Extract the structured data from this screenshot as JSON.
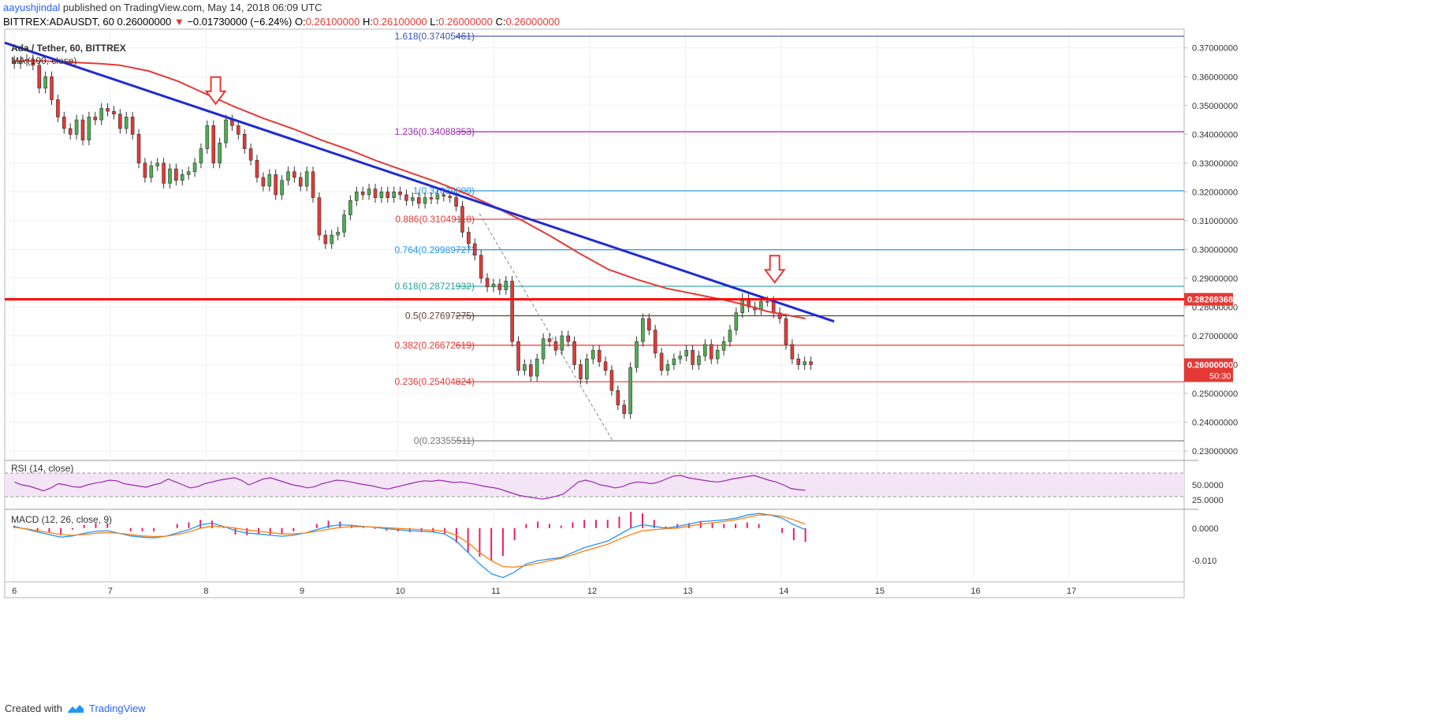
{
  "header": {
    "author": "aayushjindal",
    "published_text": " published on TradingView.com, May 14, 2018 06:09 UTC"
  },
  "ohlc": {
    "symbol": "BITTREX:ADAUSDT, 60",
    "last": "0.26000000",
    "arrow": "▼",
    "change": "−0.01730000 (−6.24%)",
    "o_label": "O:",
    "o": "0.26100000",
    "h_label": "H:",
    "h": "0.26100000",
    "l_label": "L:",
    "l": "0.26000000",
    "c_label": "C:",
    "c": "0.26000000"
  },
  "footer": {
    "created_with": "Created with",
    "brand": "TradingView"
  },
  "colors": {
    "up": "#4caf50",
    "down": "#e53935",
    "ma": "#e53935",
    "trend": "#1f2bd1",
    "resistance": "#ff0000",
    "rsi": "#9c27b0",
    "rsi_band": "#f3e5f5",
    "macd": "#2196f3",
    "signal": "#ff7f0e",
    "hist": "#e91e63",
    "price_badge": "#e53935",
    "grid": "#eef0f3"
  },
  "chart_data": {
    "type": "candlestick",
    "title": "Ada / Tether, 60, BITTREX",
    "ma_label": "MA (100, close)",
    "x_ticks": [
      "6",
      "7",
      "8",
      "9",
      "10",
      "11",
      "12",
      "13",
      "14",
      "15",
      "16",
      "17"
    ],
    "y_ticks": [
      "0.37000000",
      "0.36000000",
      "0.35000000",
      "0.34000000",
      "0.33000000",
      "0.32000000",
      "0.31000000",
      "0.30000000",
      "0.29000000",
      "0.28000000",
      "0.27000000",
      "0.26000000",
      "0.25000000",
      "0.24000000",
      "0.23000000"
    ],
    "ylim": [
      0.227,
      0.3765
    ],
    "xlim": [
      5.9,
      18.2
    ],
    "price_close": [
      0.3645,
      0.3655,
      0.366,
      0.364,
      0.356,
      0.36,
      0.352,
      0.346,
      0.342,
      0.34,
      0.345,
      0.338,
      0.346,
      0.345,
      0.349,
      0.348,
      0.347,
      0.342,
      0.346,
      0.34,
      0.33,
      0.325,
      0.329,
      0.33,
      0.323,
      0.328,
      0.324,
      0.326,
      0.327,
      0.33,
      0.335,
      0.343,
      0.33,
      0.337,
      0.345,
      0.343,
      0.34,
      0.335,
      0.331,
      0.325,
      0.322,
      0.326,
      0.319,
      0.324,
      0.327,
      0.325,
      0.322,
      0.327,
      0.318,
      0.305,
      0.302,
      0.305,
      0.306,
      0.312,
      0.317,
      0.32,
      0.319,
      0.321,
      0.318,
      0.32,
      0.318,
      0.32,
      0.319,
      0.317,
      0.318,
      0.316,
      0.318,
      0.3175,
      0.319,
      0.3185,
      0.318,
      0.315,
      0.306,
      0.302,
      0.298,
      0.29,
      0.287,
      0.288,
      0.286,
      0.289,
      0.268,
      0.258,
      0.26,
      0.256,
      0.262,
      0.269,
      0.268,
      0.265,
      0.27,
      0.268,
      0.26,
      0.255,
      0.262,
      0.265,
      0.261,
      0.258,
      0.251,
      0.246,
      0.243,
      0.259,
      0.268,
      0.276,
      0.272,
      0.264,
      0.258,
      0.26,
      0.262,
      0.263,
      0.265,
      0.26,
      0.263,
      0.267,
      0.262,
      0.265,
      0.268,
      0.272,
      0.278,
      0.283,
      0.28,
      0.279,
      0.282,
      0.282,
      0.278,
      0.276,
      0.267,
      0.262,
      0.26,
      0.261,
      0.26
    ],
    "price_start_day": 6.0,
    "price_step_day": 0.0649,
    "ma_values": [
      0.3655,
      0.3655,
      0.365,
      0.3645,
      0.364,
      0.362,
      0.3585,
      0.354,
      0.3495,
      0.3455,
      0.342,
      0.338,
      0.3345,
      0.3305,
      0.327,
      0.3235,
      0.3195,
      0.315,
      0.31,
      0.3045,
      0.2985,
      0.293,
      0.2895,
      0.2865,
      0.2845,
      0.2825,
      0.2805,
      0.2785,
      0.276
    ],
    "ma_days": [
      6.0,
      6.3,
      6.6,
      6.9,
      7.1,
      7.4,
      7.7,
      8.0,
      8.3,
      8.6,
      8.9,
      9.2,
      9.5,
      9.8,
      10.1,
      10.4,
      10.7,
      11.0,
      11.3,
      11.6,
      11.9,
      12.2,
      12.5,
      12.8,
      13.1,
      13.4,
      13.65,
      13.85,
      14.25
    ],
    "trendline": {
      "x": [
        5.9,
        14.55
      ],
      "y": [
        0.3718,
        0.275
      ]
    },
    "fib_line": {
      "x": [
        10.85,
        12.24
      ],
      "y": [
        0.3125,
        0.23356
      ]
    },
    "resistance": {
      "value": "0.28269368",
      "y": 0.28269
    },
    "current_price": {
      "value": "0.26000000",
      "countdown": "50:30",
      "y": 0.26
    },
    "fib_levels": [
      {
        "label": "1.618(0.37405461)",
        "y": 0.37405,
        "color": "#3f51b5"
      },
      {
        "label": "1.236(0.34088353)",
        "y": 0.34088,
        "color": "#9c27b0"
      },
      {
        "label": "1(0.32039000)",
        "y": 0.32039,
        "color": "#2196f3"
      },
      {
        "label": "0.886(0.31049118)",
        "y": 0.31049,
        "color": "#e53935"
      },
      {
        "label": "0.764(0.29989727)",
        "y": 0.2999,
        "color": "#2196f3"
      },
      {
        "label": "0.618(0.28721932)",
        "y": 0.28722,
        "color": "#26a69a"
      },
      {
        "label": "0.5(0.27697275)",
        "y": 0.27697,
        "color": "#5d4037"
      },
      {
        "label": "0.382(0.26672619)",
        "y": 0.26673,
        "color": "#e53935"
      },
      {
        "label": "0.236(0.25404824)",
        "y": 0.25405,
        "color": "#e53935"
      },
      {
        "label": "0(0.23355511)",
        "y": 0.23356,
        "color": "#757575"
      }
    ],
    "arrows": [
      {
        "x": 8.1,
        "y": 0.35
      },
      {
        "x": 13.93,
        "y": 0.288
      }
    ],
    "rsi": {
      "label": "RSI (14, close)",
      "ticks": [
        "50.0000",
        "25.0000"
      ],
      "ylim": [
        10,
        90
      ],
      "band": [
        30,
        70
      ],
      "values": [
        55,
        50,
        48,
        44,
        40,
        45,
        52,
        50,
        47,
        46,
        50,
        53,
        55,
        58,
        57,
        52,
        50,
        48,
        46,
        50,
        53,
        60,
        55,
        50,
        45,
        47,
        52,
        55,
        58,
        60,
        62,
        58,
        50,
        55,
        60,
        62,
        58,
        54,
        50,
        48,
        45,
        47,
        52,
        55,
        58,
        57,
        55,
        52,
        50,
        48,
        45,
        43,
        46,
        49,
        52,
        55,
        57,
        56,
        58,
        56,
        54,
        55,
        53,
        51,
        48,
        46,
        44,
        40,
        36,
        32,
        30,
        28,
        26,
        28,
        31,
        35,
        45,
        55,
        58,
        55,
        50,
        48,
        45,
        47,
        52,
        55,
        54,
        52,
        55,
        60,
        65,
        66,
        62,
        60,
        58,
        56,
        55,
        57,
        60,
        62,
        64,
        66,
        62,
        58,
        55,
        50,
        44,
        42,
        41
      ]
    },
    "macd": {
      "label": "MACD (12, 26, close, 9)",
      "ticks": [
        "0.0000",
        "-0.010"
      ],
      "ylim": [
        -0.0165,
        0.0055
      ],
      "macd": [
        0.0005,
        -0.0003,
        -0.0012,
        -0.002,
        -0.0028,
        -0.0024,
        -0.0016,
        -0.001,
        -0.0008,
        -0.0016,
        -0.0024,
        -0.0028,
        -0.003,
        -0.0025,
        -0.0015,
        -0.0005,
        0.001,
        0.0015,
        0.0005,
        -0.0008,
        -0.0015,
        -0.0018,
        -0.0022,
        -0.0025,
        -0.0022,
        -0.0015,
        -0.0005,
        0.0005,
        0.001,
        0.0008,
        0.0005,
        0.0002,
        -0.0002,
        -0.0005,
        -0.0008,
        -0.001,
        -0.0012,
        -0.0018,
        -0.004,
        -0.0075,
        -0.011,
        -0.014,
        -0.0152,
        -0.0135,
        -0.011,
        -0.01,
        -0.0095,
        -0.009,
        -0.0075,
        -0.006,
        -0.005,
        -0.004,
        -0.002,
        0.0,
        0.001,
        0.0005,
        0.0,
        0.0005,
        0.0012,
        0.002,
        0.0022,
        0.0025,
        0.003,
        0.004,
        0.0045,
        0.004,
        0.003,
        0.001,
        -0.0005
      ],
      "signal": [
        0.0002,
        -0.0002,
        -0.0008,
        -0.0014,
        -0.002,
        -0.0022,
        -0.002,
        -0.0016,
        -0.0014,
        -0.0016,
        -0.002,
        -0.0024,
        -0.0026,
        -0.0025,
        -0.002,
        -0.0012,
        0.0,
        0.0006,
        0.0004,
        0.0,
        -0.0006,
        -0.001,
        -0.0014,
        -0.0018,
        -0.0018,
        -0.0015,
        -0.001,
        -0.0004,
        0.0002,
        0.0004,
        0.0004,
        0.0003,
        0.0001,
        -0.0001,
        -0.0003,
        -0.0005,
        -0.0007,
        -0.001,
        -0.0022,
        -0.0045,
        -0.0075,
        -0.01,
        -0.0118,
        -0.012,
        -0.0115,
        -0.0108,
        -0.01,
        -0.0093,
        -0.0082,
        -0.007,
        -0.006,
        -0.005,
        -0.0034,
        -0.002,
        -0.0008,
        -0.0005,
        -0.0002,
        0.0,
        0.0006,
        0.0012,
        0.0016,
        0.002,
        0.0025,
        0.0033,
        0.004,
        0.004,
        0.0036,
        0.0025,
        0.0012
      ]
    }
  }
}
